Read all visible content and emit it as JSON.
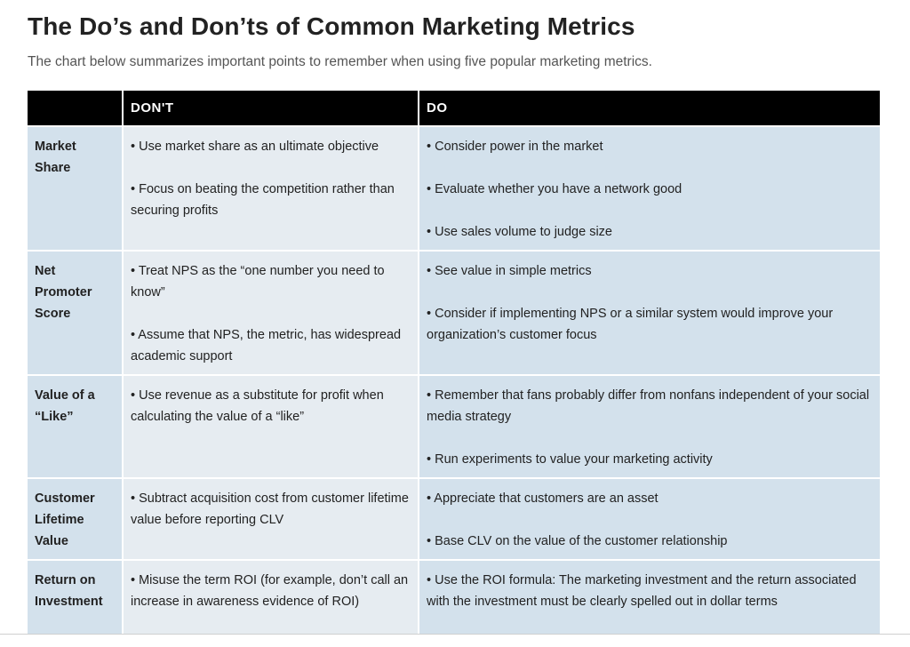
{
  "page": {
    "title": "The Do’s and Don’ts of Common Marketing Metrics",
    "subtitle": "The chart below summarizes important points to remember when using five popular marketing metrics."
  },
  "table": {
    "headers": [
      "",
      "DON'T",
      "DO"
    ],
    "rows": [
      {
        "metric": "Market Share",
        "donts": [
          "• Use market share as an ultimate objective",
          "• Focus on beating the competition rather than securing profits"
        ],
        "dos": [
          "• Consider power in the market",
          "• Evaluate whether you have a network good",
          "• Use sales volume to judge size"
        ]
      },
      {
        "metric": "Net Promoter Score",
        "donts": [
          "• Treat NPS as the “one number you need to know”",
          "• Assume that NPS, the metric, has widespread academic support"
        ],
        "dos": [
          "• See value in simple metrics",
          "• Consider if implementing NPS or a similar system would improve your organization’s customer focus"
        ]
      },
      {
        "metric": "Value of a “Like”",
        "donts": [
          "• Use revenue as a substitute for profit when calculating the value of a “like”"
        ],
        "dos": [
          "• Remember that fans probably differ from nonfans independent of your social media strategy",
          "• Run experiments to value your marketing activity"
        ]
      },
      {
        "metric": "Customer Lifetime Value",
        "donts": [
          "• Subtract acquisition cost from customer lifetime value before reporting CLV"
        ],
        "dos": [
          "• Appreciate that customers are an asset",
          "• Base CLV on the value of the customer relationship"
        ]
      },
      {
        "metric": "Return on Investment",
        "donts": [
          "• Misuse the term ROI (for example, don’t call an increase in awareness evidence of ROI)"
        ],
        "dos": [
          "• Use the ROI formula: The marketing investment and the return associated with the investment must be clearly spelled out in dollar terms"
        ]
      }
    ]
  },
  "colors": {
    "header_bg": "#000000",
    "metric_bg": "#d3e1ec",
    "dont_bg": "#e6ecf1",
    "do_bg": "#d3e1ec"
  }
}
